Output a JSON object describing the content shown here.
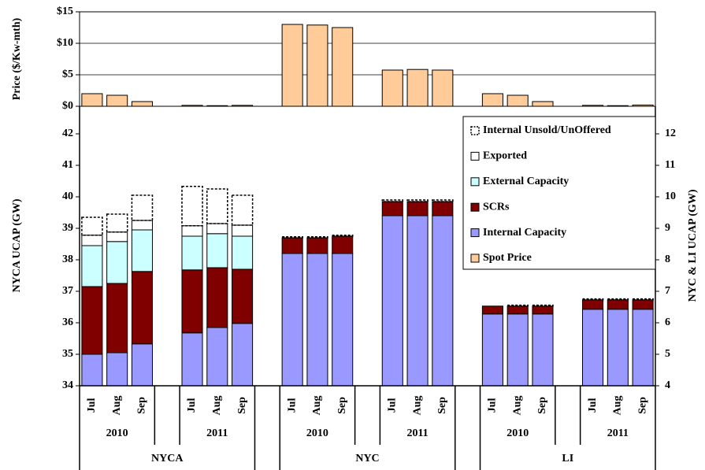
{
  "chart_data": [
    {
      "type": "bar",
      "ylabel": "Price ($/Kw-mth)",
      "ylim": [
        0,
        15
      ],
      "yticks": [
        {
          "value": 0,
          "label": "$0"
        },
        {
          "value": 5,
          "label": "$5"
        },
        {
          "value": 10,
          "label": "$10"
        },
        {
          "value": 15,
          "label": "$15"
        }
      ],
      "grid": true,
      "series": [
        {
          "name": "Spot Price",
          "color": "#ffcc99",
          "values": [
            2.0,
            1.75,
            0.75,
            0.15,
            0.1,
            0.15,
            13.0,
            12.9,
            12.5,
            5.75,
            5.85,
            5.75,
            2.0,
            1.75,
            0.75,
            0.15,
            0.1,
            0.2
          ]
        }
      ]
    },
    {
      "type": "stacked_bar",
      "ylabel": "NYCA UCAP (GW)",
      "y2label": "NYC & LI UCAP (GW)",
      "categories": [
        "Jul",
        "Aug",
        "Sep",
        "Jul",
        "Aug",
        "Sep",
        "Jul",
        "Aug",
        "Sep",
        "Jul",
        "Aug",
        "Sep",
        "Jul",
        "Aug",
        "Sep",
        "Jul",
        "Aug",
        "Sep"
      ],
      "years": [
        "2010",
        "2011",
        "2010",
        "2011",
        "2010",
        "2011"
      ],
      "regions": [
        "NYCA",
        "NYC",
        "LI"
      ],
      "category_axis": [
        "y",
        "y",
        "y",
        "y",
        "y",
        "y",
        "y2",
        "y2",
        "y2",
        "y2",
        "y2",
        "y2",
        "y2",
        "y2",
        "y2",
        "y2",
        "y2",
        "y2"
      ],
      "ylim": [
        34,
        42.875
      ],
      "yticks": [
        34,
        35,
        36,
        37,
        38,
        39,
        40,
        41,
        42
      ],
      "y2lim": [
        4,
        12.875
      ],
      "y2ticks": [
        4,
        5,
        6,
        7,
        8,
        9,
        10,
        11,
        12
      ],
      "series": [
        {
          "name": "Internal Capacity",
          "color": "#9999ff",
          "values": [
            35.0,
            35.05,
            35.33,
            35.68,
            35.85,
            35.98,
            8.2,
            8.2,
            8.2,
            9.4,
            9.4,
            9.4,
            6.28,
            6.28,
            6.28,
            6.43,
            6.43,
            6.43
          ]
        },
        {
          "name": "SCRs",
          "color": "#800000",
          "values": [
            2.15,
            2.2,
            2.3,
            2.0,
            1.9,
            1.72,
            0.5,
            0.5,
            0.55,
            0.45,
            0.45,
            0.45,
            0.25,
            0.25,
            0.25,
            0.3,
            0.3,
            0.3
          ]
        },
        {
          "name": "External Capacity",
          "color": "#ccffff",
          "values": [
            1.3,
            1.33,
            1.32,
            1.07,
            1.08,
            1.05,
            0,
            0,
            0,
            0,
            0,
            0,
            0,
            0,
            0,
            0,
            0,
            0
          ]
        },
        {
          "name": "Exported",
          "color": "#ffffff",
          "values": [
            0.33,
            0.3,
            0.3,
            0.33,
            0.32,
            0.35,
            0,
            0,
            0,
            0,
            0,
            0,
            0,
            0,
            0,
            0,
            0,
            0
          ]
        },
        {
          "name": "Internal  Unsold/UnOffered",
          "color": "none",
          "dashed": true,
          "values": [
            0.57,
            0.57,
            0.8,
            1.25,
            1.1,
            0.95,
            0.03,
            0.03,
            0.03,
            0.05,
            0.05,
            0.05,
            0,
            0.03,
            0.03,
            0.03,
            0.03,
            0.03
          ]
        }
      ]
    }
  ]
}
